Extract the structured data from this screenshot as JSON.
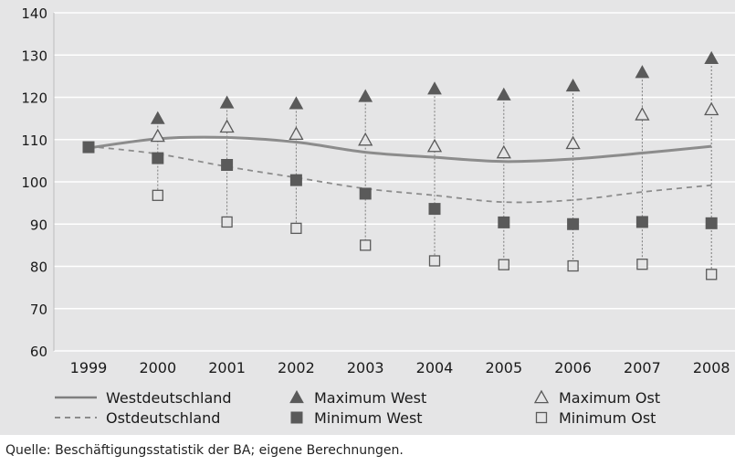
{
  "chart_data": {
    "type": "line",
    "title": "",
    "xlabel": "",
    "ylabel": "",
    "x": [
      "1999",
      "2000",
      "2001",
      "2002",
      "2003",
      "2004",
      "2005",
      "2006",
      "2007",
      "2008"
    ],
    "ylim": [
      60,
      140
    ],
    "yticks": [
      60,
      70,
      80,
      90,
      100,
      110,
      120,
      130,
      140
    ],
    "grid": "horizontal",
    "legend_position": "bottom",
    "series": [
      {
        "name": "Westdeutschland",
        "style": "solid-line",
        "color": "#8c8c8c",
        "values": [
          108,
          110.2,
          110.5,
          109.4,
          107,
          105.8,
          104.8,
          105.4,
          106.8,
          108.4
        ]
      },
      {
        "name": "Ostdeutschland",
        "style": "dashed-line",
        "color": "#8c8c8c",
        "values": [
          108.4,
          106.6,
          103.6,
          101,
          98.4,
          96.8,
          95.2,
          95.7,
          97.6,
          99.2
        ]
      },
      {
        "name": "Maximum West",
        "style": "filled-triangle",
        "color": "#5a5a5a",
        "values": [
          null,
          115,
          118.7,
          118.5,
          120.2,
          122,
          120.6,
          122.7,
          125.9,
          129.2
        ]
      },
      {
        "name": "Minimum West",
        "style": "filled-square",
        "color": "#5a5a5a",
        "values": [
          108.2,
          105.6,
          104,
          100.4,
          97.2,
          93.6,
          90.4,
          90,
          90.5,
          90.2
        ]
      },
      {
        "name": "Maximum Ost",
        "style": "open-triangle",
        "color": "#5a5a5a",
        "values": [
          null,
          110.8,
          113,
          111.3,
          109.9,
          108.4,
          106.9,
          109.1,
          115.9,
          117.1
        ]
      },
      {
        "name": "Minimum  Ost",
        "style": "open-square",
        "color": "#5a5a5a",
        "values": [
          null,
          96.8,
          90.5,
          89,
          85,
          81.3,
          80.4,
          80.1,
          80.5,
          78.1
        ]
      }
    ]
  },
  "source": "Quelle: Beschäftigungsstatistik der BA; eigene Berechnungen.",
  "colors": {
    "background": "#e5e5e6",
    "grid": "#ffffff",
    "marker": "#5a5a5a",
    "line": "#8c8c8c"
  }
}
